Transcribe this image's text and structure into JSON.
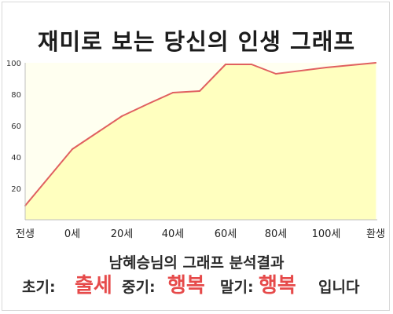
{
  "title": "재미로 보는 당신의 인생 그래프",
  "chart_data": {
    "type": "area",
    "title": "재미로 보는 당신의 인생 그래프",
    "x_labels": [
      "전생",
      "0세",
      "20세",
      "40세",
      "60세",
      "80세",
      "100세",
      "환생"
    ],
    "points": [
      {
        "x": "전생",
        "y": 9
      },
      {
        "x": "0세",
        "y": 45
      },
      {
        "x": "20세",
        "y": 66
      },
      {
        "x": "30세",
        "y": 74
      },
      {
        "x": "40세",
        "y": 81
      },
      {
        "x": "50세",
        "y": 82
      },
      {
        "x": "60세",
        "y": 99
      },
      {
        "x": "70세",
        "y": 99
      },
      {
        "x": "80세",
        "y": 93
      },
      {
        "x": "100세",
        "y": 97
      },
      {
        "x": "환생",
        "y": 100
      }
    ],
    "y_ticks": [
      20,
      40,
      60,
      80,
      100
    ],
    "ylim": [
      0,
      100
    ],
    "grid": false,
    "colors": {
      "line": "#e06060",
      "fill": "#ffffbf",
      "plot_bg": "#fffff0",
      "axis": "#bfbfbf"
    }
  },
  "subtitle": "남혜승님의 그래프 분석결과",
  "result": {
    "early_label": "초기:",
    "early_value": "출세",
    "middle_label": "중기:",
    "middle_value": "행복",
    "late_label": "말기:",
    "late_value": "행복",
    "ending": "입니다"
  }
}
